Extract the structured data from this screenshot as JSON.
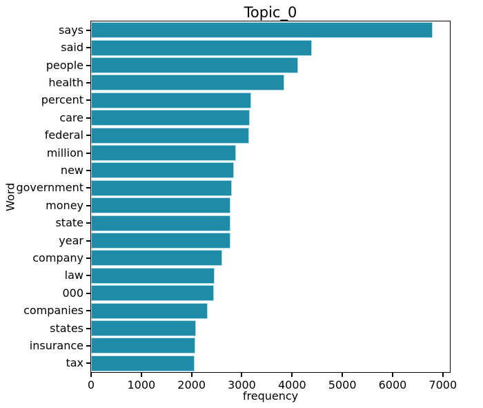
{
  "chart_data": {
    "type": "bar",
    "orientation": "horizontal",
    "title": "Topic_0",
    "xlabel": "frequency",
    "ylabel": "Word",
    "categories": [
      "says",
      "said",
      "people",
      "health",
      "percent",
      "care",
      "federal",
      "million",
      "new",
      "government",
      "money",
      "state",
      "year",
      "company",
      "law",
      "000",
      "companies",
      "states",
      "insurance",
      "tax"
    ],
    "values": [
      6800,
      4400,
      4120,
      3840,
      3190,
      3160,
      3140,
      2890,
      2840,
      2805,
      2780,
      2775,
      2770,
      2610,
      2460,
      2440,
      2320,
      2090,
      2080,
      2060
    ],
    "xlim": [
      0,
      7140
    ],
    "xticks": [
      0,
      1000,
      2000,
      3000,
      4000,
      5000,
      6000,
      7000
    ],
    "grid": false,
    "legend": false,
    "bar_color": "#1e8ca6",
    "bar_edge_color": "#aedae6",
    "spine_color": "#000000",
    "text_color": "#000000",
    "background_color": "#ffffff"
  }
}
